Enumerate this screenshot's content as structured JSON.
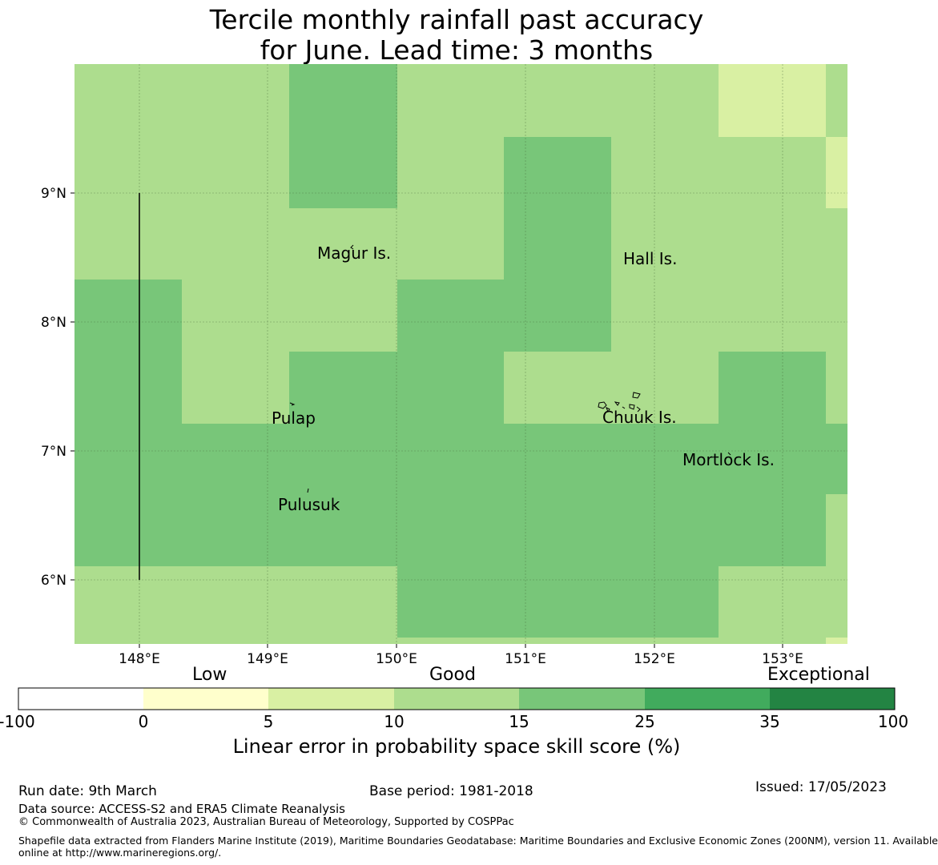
{
  "title": {
    "line1": "Tercile monthly rainfall past accuracy",
    "line2": "for June. Lead time: 3 months"
  },
  "map": {
    "x_ticks": [
      "148°E",
      "149°E",
      "150°E",
      "151°E",
      "152°E",
      "153°E"
    ],
    "y_ticks": [
      "9°N",
      "8°N",
      "7°N",
      "6°N"
    ],
    "places": [
      "Magur Is.",
      "Hall Is.",
      "Pulap",
      "Chuuk Is.",
      "Mortlock Is.",
      "Pulusuk"
    ]
  },
  "colorbar": {
    "categories": [
      "Low",
      "Good",
      "Exceptional"
    ],
    "ticks": [
      "-100",
      "0",
      "5",
      "10",
      "15",
      "25",
      "35",
      "100"
    ],
    "colors": [
      "#ffffff",
      "#ffffcc",
      "#d9f0a3",
      "#addd8e",
      "#78c679",
      "#41ab5d",
      "#238443"
    ],
    "label": "Linear error in probability space skill score (%)"
  },
  "footer": {
    "run_date": "Run date: 9th March",
    "base_period": "Base period: 1981-2018",
    "issued": "Issued: 17/05/2023",
    "data_source": "Data source: ACCESS-S2 and ERA5 Climate Reanalysis",
    "copyright": "© Commonwealth of Australia 2023, Australian Bureau of Meteorology, Supported by COSPPac",
    "shapefile_line1": "Shapefile data extracted from Flanders Marine Institute (2019), Maritime Boundaries Geodatabase: Maritime Boundaries and Exclusive Economic Zones (200NM), version 11. Available",
    "shapefile_line2": "online at http://www.marineregions.org/."
  }
}
